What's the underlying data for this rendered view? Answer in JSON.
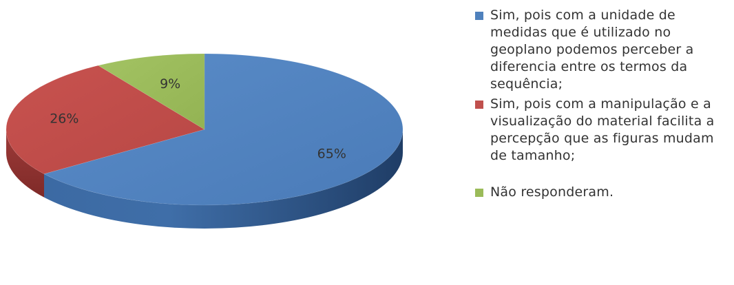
{
  "chart_data": {
    "type": "pie",
    "title": "",
    "style": "3d",
    "slices": [
      {
        "label": "Sim, pois com a unidade de medidas que é utilizado no geoplano podemos perceber a diferencia entre os termos da sequência;",
        "value": 65,
        "display": "65%",
        "color": "#4f81bd"
      },
      {
        "label": "Sim, pois com a manipulação e a visualização do material facilita a percepção que as figuras mudam de tamanho;",
        "value": 26,
        "display": "26%",
        "color": "#c0504d"
      },
      {
        "label": "Não responderam.",
        "value": 9,
        "display": "9%",
        "color": "#9bbb59"
      }
    ],
    "legend_position": "right"
  }
}
